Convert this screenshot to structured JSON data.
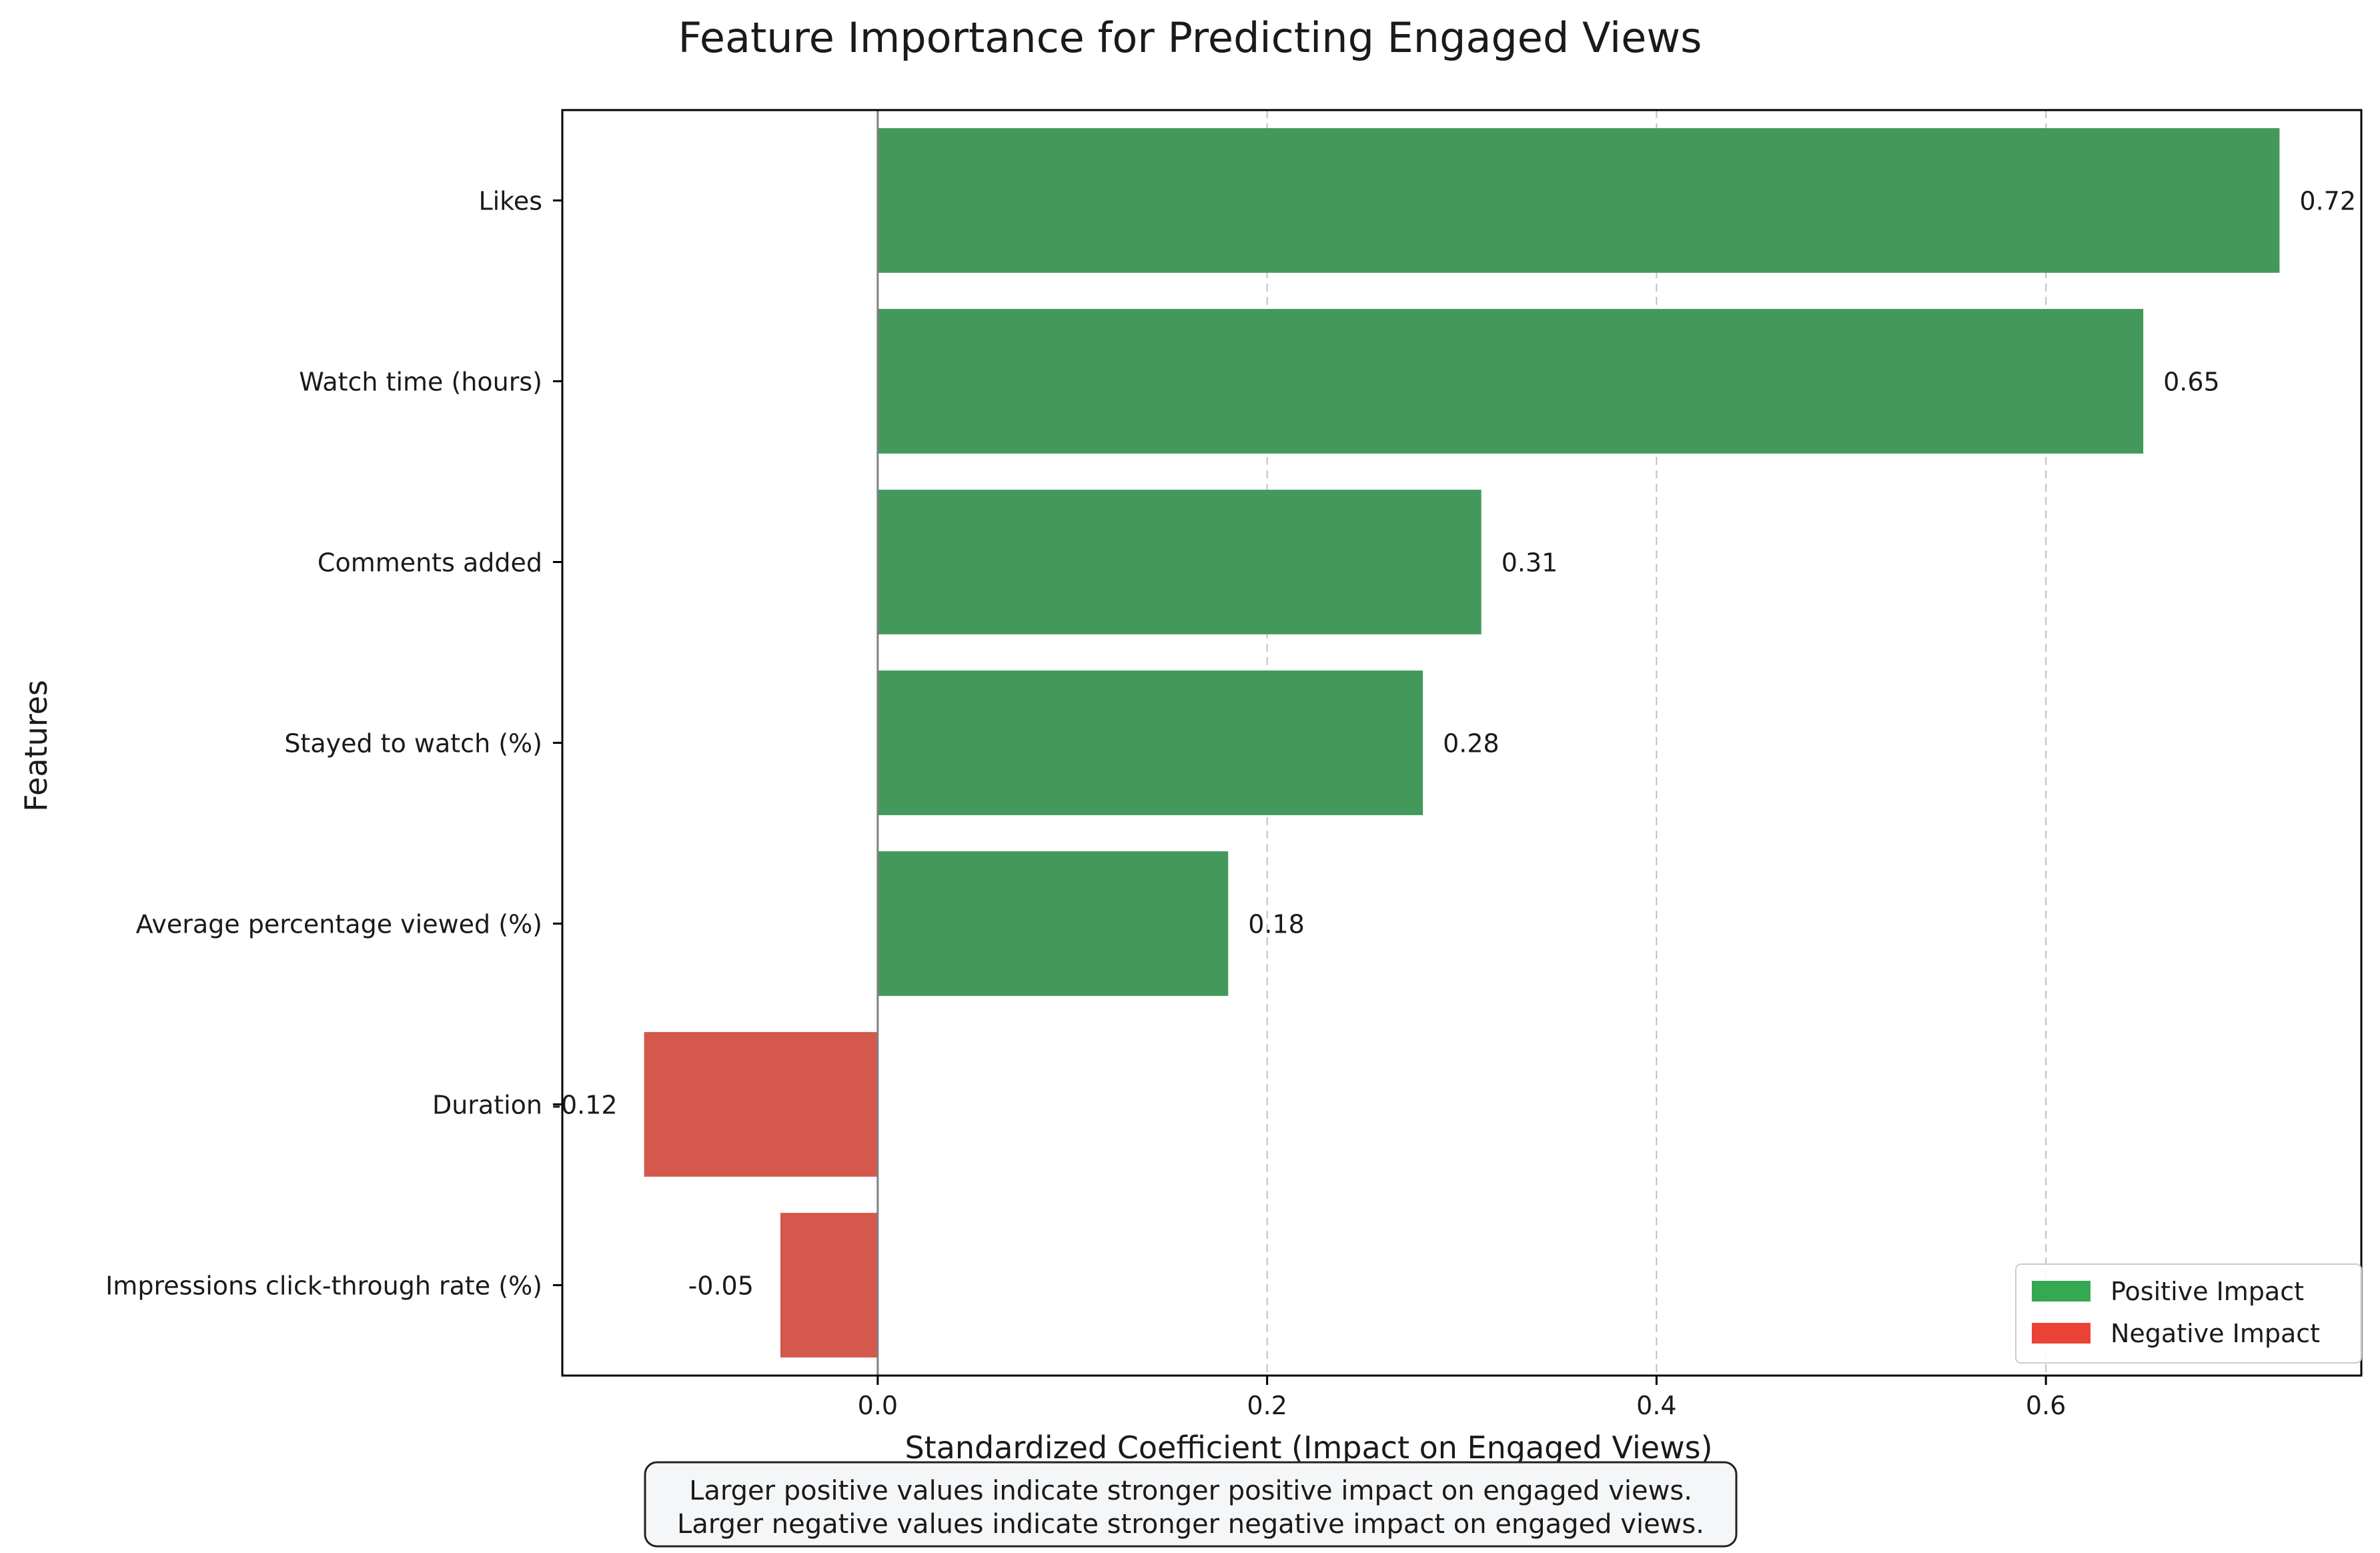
{
  "chart_data": {
    "type": "bar",
    "orientation": "horizontal",
    "title": "Feature Importance for Predicting Engaged Views",
    "xlabel": "Standardized Coefficient (Impact on Engaged Views)",
    "ylabel": "Features",
    "xlim": [
      -0.162,
      0.762
    ],
    "x_ticks": [
      "0.0",
      "0.2",
      "0.4",
      "0.6"
    ],
    "x_tick_values": [
      0.0,
      0.2,
      0.4,
      0.6
    ],
    "grid": "x-dashed",
    "categories": [
      "Likes",
      "Watch time (hours)",
      "Comments added",
      "Stayed to watch (%)",
      "Average percentage viewed (%)",
      "Duration",
      "Impressions click-through rate (%)"
    ],
    "values": [
      0.72,
      0.65,
      0.31,
      0.28,
      0.18,
      -0.12,
      -0.05
    ],
    "value_labels": [
      "0.72",
      "0.65",
      "0.31",
      "0.28",
      "0.18",
      "-0.12",
      "-0.05"
    ],
    "legend": {
      "placement": "lower-right",
      "entries": [
        {
          "label": "Positive Impact",
          "color": "#34a853"
        },
        {
          "label": "Negative Impact",
          "color": "#ea4335"
        }
      ]
    },
    "bar_colors": {
      "positive": "#43995b",
      "negative": "#d4584c"
    },
    "notes": [
      "Larger positive values indicate stronger positive impact on engaged views.",
      "Larger negative values indicate stronger negative impact on engaged views."
    ]
  }
}
